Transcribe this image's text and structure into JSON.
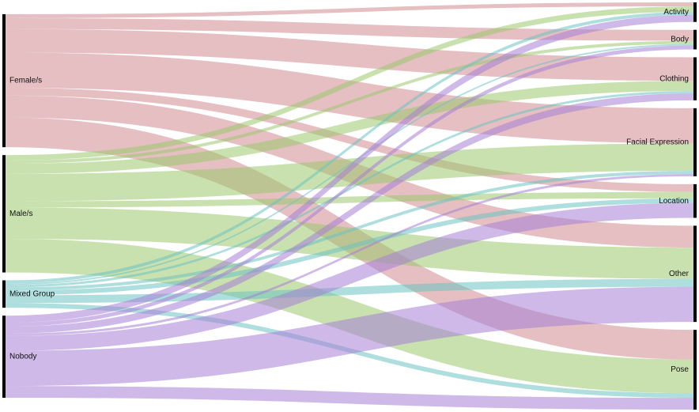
{
  "chart_data": {
    "type": "sankey",
    "nodes": [
      {
        "label": "Female/s",
        "side": "left",
        "color": "#d08a90"
      },
      {
        "label": "Male/s",
        "side": "left",
        "color": "#9cc86e"
      },
      {
        "label": "Mixed Group",
        "side": "left",
        "color": "#6cc3c1"
      },
      {
        "label": "Nobody",
        "side": "left",
        "color": "#a67fd6"
      },
      {
        "label": "Activity",
        "side": "right"
      },
      {
        "label": "Body",
        "side": "right"
      },
      {
        "label": "Clothing",
        "side": "right"
      },
      {
        "label": "Facial Expression",
        "side": "right"
      },
      {
        "label": "Location",
        "side": "right"
      },
      {
        "label": "Other",
        "side": "right"
      },
      {
        "label": "Pose",
        "side": "right"
      }
    ],
    "links": [
      {
        "source": 0,
        "target": 4,
        "value": 5
      },
      {
        "source": 0,
        "target": 5,
        "value": 14
      },
      {
        "source": 0,
        "target": 6,
        "value": 30
      },
      {
        "source": 0,
        "target": 7,
        "value": 45
      },
      {
        "source": 0,
        "target": 8,
        "value": 10
      },
      {
        "source": 0,
        "target": 9,
        "value": 28
      },
      {
        "source": 0,
        "target": 10,
        "value": 38
      },
      {
        "source": 1,
        "target": 4,
        "value": 7
      },
      {
        "source": 1,
        "target": 5,
        "value": 4
      },
      {
        "source": 1,
        "target": 6,
        "value": 13
      },
      {
        "source": 1,
        "target": 7,
        "value": 35
      },
      {
        "source": 1,
        "target": 8,
        "value": 8
      },
      {
        "source": 1,
        "target": 9,
        "value": 40
      },
      {
        "source": 1,
        "target": 10,
        "value": 43
      },
      {
        "source": 2,
        "target": 4,
        "value": 4
      },
      {
        "source": 2,
        "target": 5,
        "value": 2
      },
      {
        "source": 2,
        "target": 6,
        "value": 3
      },
      {
        "source": 2,
        "target": 7,
        "value": 4
      },
      {
        "source": 2,
        "target": 8,
        "value": 6
      },
      {
        "source": 2,
        "target": 9,
        "value": 10
      },
      {
        "source": 2,
        "target": 10,
        "value": 6
      },
      {
        "source": 3,
        "target": 4,
        "value": 9
      },
      {
        "source": 3,
        "target": 5,
        "value": 5
      },
      {
        "source": 3,
        "target": 6,
        "value": 9
      },
      {
        "source": 3,
        "target": 7,
        "value": 3
      },
      {
        "source": 3,
        "target": 8,
        "value": 19
      },
      {
        "source": 3,
        "target": 9,
        "value": 45
      },
      {
        "source": 3,
        "target": 10,
        "value": 15
      }
    ]
  }
}
